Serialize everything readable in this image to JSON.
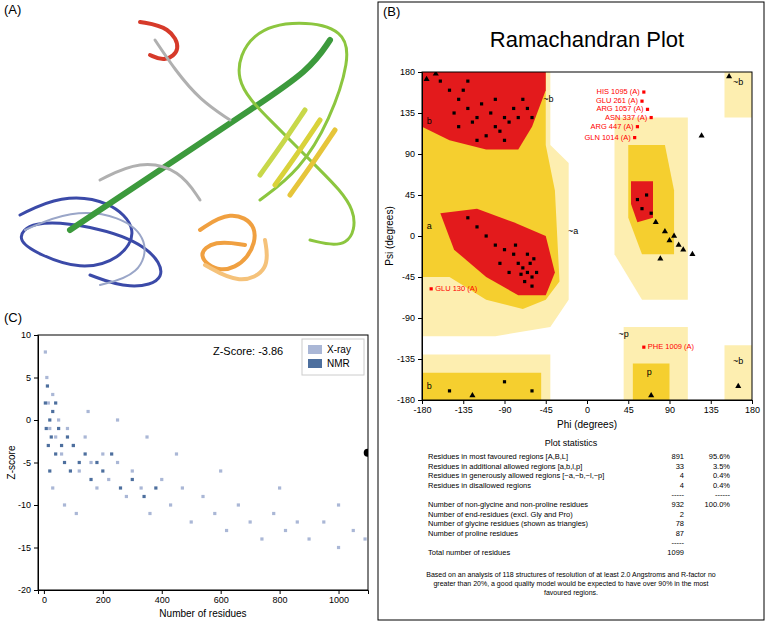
{
  "chart_data": [
    {
      "type": "image",
      "label": "(A)"
    },
    {
      "type": "scatter",
      "label": "(B)",
      "title": "Ramachandran Plot",
      "xlabel": "Phi (degrees)",
      "ylabel": "Psi (degrees)",
      "xlim": [
        -180,
        180
      ],
      "ylim": [
        -180,
        180
      ],
      "xticks": [
        -180,
        -135,
        -90,
        -45,
        0,
        45,
        90,
        135,
        180
      ],
      "yticks": [
        -180,
        -135,
        -90,
        -45,
        0,
        45,
        90,
        135,
        180
      ],
      "regions": [
        {
          "color": "#fdeeb0",
          "polygons": [
            {
              "x": [
                -180,
                -40,
                -40,
                -20,
                -20,
                -40,
                -100,
                -180
              ],
              "y": [
                180,
                180,
                100,
                80,
                -70,
                -100,
                -110,
                -110
              ]
            },
            {
              "x": [
                -180,
                -40,
                -40,
                -180
              ],
              "y": [
                -130,
                -130,
                -180,
                -180
              ]
            },
            {
              "x": [
                30,
                110,
                110,
                60,
                30
              ],
              "y": [
                130,
                130,
                -70,
                -70,
                -20
              ]
            },
            {
              "x": [
                40,
                110,
                110,
                40
              ],
              "y": [
                -100,
                -100,
                -180,
                -180
              ]
            },
            {
              "x": [
                150,
                180,
                180,
                150
              ],
              "y": [
                180,
                180,
                130,
                130
              ]
            },
            {
              "x": [
                150,
                180,
                180,
                150
              ],
              "y": [
                -120,
                -120,
                -180,
                -180
              ]
            }
          ]
        },
        {
          "color": "#f5cf2f",
          "polygons": [
            {
              "x": [
                -180,
                -45,
                -45,
                -35,
                -30,
                -45,
                -70,
                -110,
                -150,
                -180
              ],
              "y": [
                180,
                180,
                100,
                50,
                -50,
                -70,
                -80,
                -70,
                -45,
                -45
              ]
            },
            {
              "x": [
                -180,
                -50,
                -50,
                -180
              ],
              "y": [
                -150,
                -150,
                -180,
                -180
              ]
            },
            {
              "x": [
                45,
                85,
                95,
                95,
                60,
                45
              ],
              "y": [
                100,
                100,
                50,
                -20,
                -20,
                20
              ]
            },
            {
              "x": [
                50,
                90,
                90,
                50
              ],
              "y": [
                -140,
                -140,
                -180,
                -180
              ]
            }
          ]
        },
        {
          "color": "#e31a1c",
          "polygons": [
            {
              "x": [
                -180,
                -45,
                -45,
                -60,
                -75,
                -110,
                -150,
                -180
              ],
              "y": [
                180,
                180,
                160,
                120,
                95,
                95,
                105,
                120
              ]
            },
            {
              "x": [
                -160,
                -120,
                -80,
                -45,
                -35,
                -45,
                -75,
                -110,
                -145
              ],
              "y": [
                25,
                30,
                15,
                0,
                -40,
                -65,
                -65,
                -45,
                -15
              ]
            },
            {
              "x": [
                48,
                72,
                72,
                55,
                48
              ],
              "y": [
                60,
                60,
                20,
                15,
                35
              ]
            }
          ]
        }
      ],
      "annotations": [
        {
          "text": "b",
          "x": -172,
          "y": 125
        },
        {
          "text": "a",
          "x": -172,
          "y": 10
        },
        {
          "text": "~b",
          "x": -42,
          "y": 150
        },
        {
          "text": "~a",
          "x": -15,
          "y": 5
        },
        {
          "text": "~b",
          "x": 165,
          "y": 168
        },
        {
          "text": "~b",
          "x": 165,
          "y": -138
        },
        {
          "text": "b",
          "x": -172,
          "y": -165
        },
        {
          "text": "~p",
          "x": 40,
          "y": -108
        },
        {
          "text": "p",
          "x": 68,
          "y": -150
        }
      ],
      "series": [
        {
          "marker": "square",
          "color": "#000000",
          "x": [
            -120,
            -100,
            -140,
            -130,
            -90,
            -110,
            -150,
            -80,
            -70,
            -125,
            -105,
            -95,
            -135,
            -85,
            -115,
            -160,
            -75,
            -140,
            -65,
            -100,
            -120,
            -130,
            -90,
            -60,
            -145,
            -65,
            -60,
            -70,
            -75,
            -80,
            -90,
            -55,
            -62,
            -68,
            -100,
            -85,
            -110,
            -95,
            -58,
            -72,
            -120,
            -130,
            -65,
            -60,
            -78,
            55,
            60,
            65,
            70,
            -60,
            -90,
            -150
          ],
          "y": [
            130,
            120,
            150,
            140,
            130,
            110,
            160,
            140,
            150,
            125,
            135,
            115,
            160,
            125,
            145,
            170,
            130,
            120,
            140,
            150,
            105,
            170,
            105,
            130,
            135,
            -40,
            -45,
            -35,
            -30,
            -20,
            -15,
            -40,
            -30,
            -50,
            -10,
            -40,
            0,
            -30,
            -25,
            -42,
            10,
            20,
            -20,
            -55,
            -10,
            40,
            30,
            45,
            25,
            -170,
            -160,
            -170
          ]
        },
        {
          "marker": "triangle",
          "color": "#000000",
          "x": [
            -175,
            -165,
            85,
            90,
            95,
            100,
            75,
            105,
            115,
            80,
            165,
            155,
            125,
            70,
            -125
          ],
          "y": [
            172,
            178,
            5,
            -5,
            0,
            -10,
            15,
            -15,
            -20,
            -25,
            -165,
            175,
            110,
            -175,
            -175
          ]
        },
        {
          "marker": "square",
          "color": "#ff0000",
          "x": [
            62,
            60,
            66,
            70,
            55,
            52,
            -170,
            62
          ],
          "y": [
            158,
            148,
            139,
            130,
            120,
            108,
            -58,
            -122
          ],
          "labels": [
            "HIS 1095 (A)",
            "GLU 261 (A)",
            "ARG 1057 (A)",
            "ASN 337 (A)",
            "ARG 447 (A)",
            "GLN 1014 (A)",
            "GLU 130 (A)",
            "PHE 1009 (A)"
          ]
        }
      ],
      "table": {
        "title": "Plot statistics",
        "rows": [
          {
            "label": "Residues in most favoured regions [A,B,L]",
            "count": 891,
            "percent": "95.6%"
          },
          {
            "label": "Residues in additional allowed regions [a,b,l,p]",
            "count": 33,
            "percent": "3.5%"
          },
          {
            "label": "Residues in generously allowed regions [~a,~b,~l,~p]",
            "count": 4,
            "percent": "0.4%"
          },
          {
            "label": "Residues in disallowed regions",
            "count": 4,
            "percent": "0.4%"
          },
          {
            "count": "-----",
            "percent": "------"
          },
          {
            "label": "Number of non-glycine and non-proline residues",
            "count": 932,
            "percent": "100.0%"
          },
          {
            "label": "Number of end-residues (excl. Gly and Pro)",
            "count": 2
          },
          {
            "label": "Number of glycine residues (shown as triangles)",
            "count": 78
          },
          {
            "label": "Number of proline residues",
            "count": 87
          },
          {
            "count": "-----"
          },
          {
            "label": "Total number of residues",
            "count": 1099
          }
        ]
      },
      "footnote": "Based on an analysis of 118 structures of resolution of at least 2.0 Angstroms and R-factor no greater than 20%, a good quality model would be expected to have over 90% in the most favoured regions."
    },
    {
      "type": "scatter",
      "label": "(C)",
      "xlabel": "Number of residues",
      "ylabel": "Z-score",
      "xlim": [
        -20,
        1100
      ],
      "ylim": [
        -20,
        10
      ],
      "xticks": [
        0,
        200,
        400,
        600,
        800,
        1000
      ],
      "yticks": [
        -20,
        -15,
        -10,
        -5,
        0,
        5,
        10
      ],
      "legend": "upper right",
      "series": [
        {
          "name": "X-ray",
          "color": "#aab7d6",
          "marker": "square",
          "x": [
            5,
            10,
            15,
            20,
            30,
            40,
            50,
            60,
            80,
            100,
            120,
            140,
            160,
            180,
            200,
            220,
            250,
            280,
            300,
            330,
            360,
            400,
            430,
            470,
            500,
            540,
            580,
            620,
            660,
            700,
            740,
            780,
            820,
            860,
            900,
            950,
            1000,
            1050,
            1090,
            30,
            70,
            110,
            150,
            250,
            350,
            450,
            600,
            800,
            1000
          ],
          "y": [
            8,
            5,
            2,
            -1,
            3,
            -2,
            0,
            -4,
            -1,
            -3,
            -6,
            -2,
            -5,
            -8,
            -4,
            -7,
            -5,
            -9,
            -6,
            -8,
            -11,
            -7,
            -10,
            -8,
            -12,
            -9,
            -11,
            -13,
            -10,
            -12,
            -14,
            -11,
            -13,
            -12,
            -14,
            -12,
            -15,
            -13,
            -14,
            -8,
            -10,
            -11,
            1,
            0,
            -2,
            -4,
            -6,
            -8,
            -10
          ]
        },
        {
          "name": "NMR",
          "color": "#4d6f9e",
          "marker": "square",
          "x": [
            5,
            8,
            12,
            15,
            20,
            25,
            30,
            40,
            50,
            60,
            70,
            80,
            90,
            100,
            120,
            140,
            160,
            180,
            200,
            230,
            260,
            300,
            340,
            380,
            20,
            40
          ],
          "y": [
            2,
            -1,
            4,
            -3,
            0,
            -2,
            1,
            -4,
            -1,
            -3,
            -5,
            -2,
            -6,
            -3,
            -5,
            -4,
            -7,
            -5,
            -6,
            -4,
            -8,
            -7,
            -9,
            -8,
            -6,
            2
          ]
        }
      ],
      "highlight": {
        "x": 1099,
        "y": -3.86,
        "color": "#000000"
      },
      "annotations": [
        {
          "text": "Z-Score: -3.86",
          "x": 693,
          "y": 8
        }
      ]
    }
  ]
}
